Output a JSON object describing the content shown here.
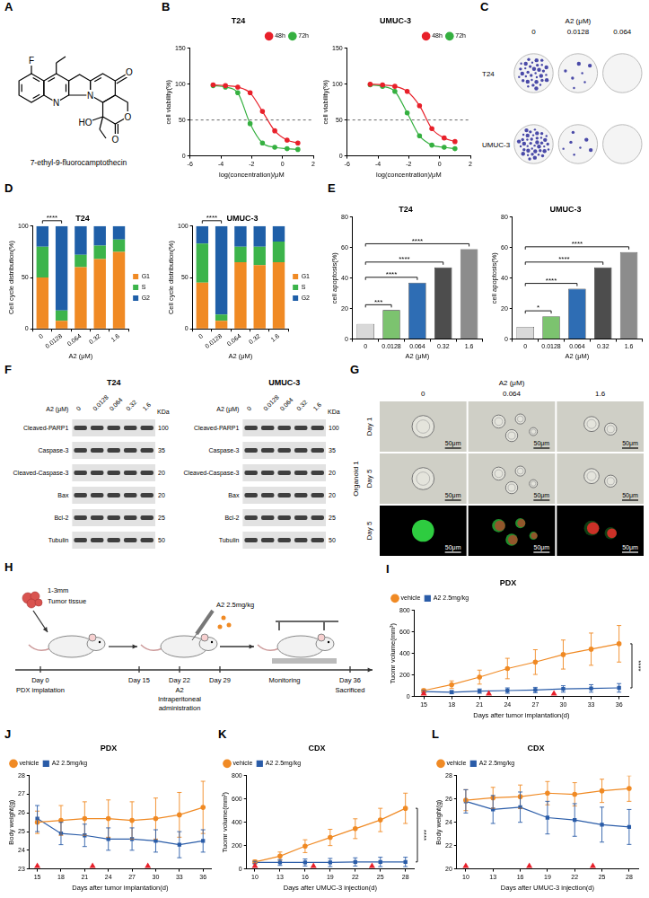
{
  "chart_data": [
    {
      "panel": "B",
      "type": "line",
      "title": "T24",
      "x_label": "log(concentration)/μM",
      "y_label": "cell viability(%)",
      "x": [
        -4.5,
        -3.7,
        -2.9,
        -2.1,
        -1.3,
        -0.5,
        0.3,
        1.0
      ],
      "xlim": [
        -6,
        2
      ],
      "xticks": [
        -6,
        -4,
        -2,
        0,
        2
      ],
      "ylim": [
        0,
        150
      ],
      "yticks": [
        0,
        50,
        100,
        150
      ],
      "grid": false,
      "legend": "top-right",
      "threshold": 50,
      "series": [
        {
          "name": "48h",
          "color": "#e8202a",
          "marker": "circle",
          "line_style": "smooth",
          "values": [
            99,
            98,
            96,
            88,
            62,
            35,
            22,
            18
          ]
        },
        {
          "name": "72h",
          "color": "#35b040",
          "marker": "circle",
          "line_style": "smooth",
          "values": [
            98,
            96,
            88,
            45,
            18,
            12,
            10,
            9
          ]
        }
      ]
    },
    {
      "panel": "B",
      "type": "line",
      "title": "UMUC-3",
      "x_label": "log(concentration)/μM",
      "y_label": "cell viability(%)",
      "x": [
        -4.5,
        -3.7,
        -2.9,
        -2.1,
        -1.3,
        -0.5,
        0.3,
        1.0
      ],
      "xlim": [
        -6,
        2
      ],
      "xticks": [
        -6,
        -4,
        -2,
        0,
        2
      ],
      "ylim": [
        0,
        150
      ],
      "yticks": [
        0,
        50,
        100,
        150
      ],
      "grid": false,
      "legend": "top-right",
      "threshold": 50,
      "series": [
        {
          "name": "48h",
          "color": "#e8202a",
          "marker": "circle",
          "line_style": "smooth",
          "values": [
            100,
            99,
            97,
            90,
            70,
            38,
            25,
            20
          ]
        },
        {
          "name": "72h",
          "color": "#35b040",
          "marker": "circle",
          "line_style": "smooth",
          "values": [
            99,
            97,
            90,
            60,
            28,
            15,
            12,
            10
          ]
        }
      ]
    },
    {
      "panel": "D",
      "type": "bar",
      "title": "T24",
      "x_label": "A2 (μM)",
      "y_label": "Cell cycle distribution(%)",
      "categories": [
        "0",
        "0.0128",
        "0.064",
        "0.32",
        "1.6"
      ],
      "stacked": true,
      "ylim": [
        0,
        100
      ],
      "yticks": [
        0,
        50,
        100
      ],
      "grid": false,
      "legend": "right",
      "series": [
        {
          "name": "G1",
          "color": "#f08a24",
          "values": [
            50,
            8,
            60,
            68,
            75
          ]
        },
        {
          "name": "S",
          "color": "#3cb44b",
          "values": [
            30,
            10,
            12,
            13,
            12
          ]
        },
        {
          "name": "G2",
          "color": "#1f5fa8",
          "values": [
            20,
            82,
            28,
            19,
            13
          ]
        }
      ],
      "annotations": [
        {
          "text": "****",
          "from": "0",
          "to": "0.0128"
        }
      ]
    },
    {
      "panel": "D",
      "type": "bar",
      "title": "UMUC-3",
      "x_label": "A2 (μM)",
      "y_label": "Cell cycle distribution(%)",
      "categories": [
        "0",
        "0.0128",
        "0.064",
        "0.32",
        "1.6"
      ],
      "stacked": true,
      "ylim": [
        0,
        100
      ],
      "yticks": [
        0,
        50,
        100
      ],
      "grid": false,
      "legend": "right",
      "series": [
        {
          "name": "G1",
          "color": "#f08a24",
          "values": [
            45,
            8,
            65,
            62,
            65
          ]
        },
        {
          "name": "S",
          "color": "#3cb44b",
          "values": [
            38,
            6,
            15,
            18,
            20
          ]
        },
        {
          "name": "G2",
          "color": "#1f5fa8",
          "values": [
            17,
            86,
            20,
            20,
            15
          ]
        }
      ],
      "annotations": [
        {
          "text": "****",
          "from": "0",
          "to": "0.0128"
        }
      ]
    },
    {
      "panel": "E",
      "type": "bar",
      "title": "T24",
      "x_label": "A2 (μM)",
      "y_label": "cell apoptosis(%)",
      "categories": [
        "0",
        "0.0128",
        "0.064",
        "0.32",
        "1.6"
      ],
      "values": [
        10,
        19,
        37,
        47,
        59
      ],
      "colors": [
        "#d9d9d9",
        "#7cc36f",
        "#2e6db4",
        "#4d4d4d",
        "#8c8c8c"
      ],
      "ylim": [
        0,
        80
      ],
      "yticks": [
        0,
        20,
        40,
        60,
        80
      ],
      "grid": false,
      "annotations": [
        {
          "text": "***",
          "from": "0",
          "to": "0.0128"
        },
        {
          "text": "****",
          "from": "0",
          "to": "0.064"
        },
        {
          "text": "****",
          "from": "0",
          "to": "0.32"
        },
        {
          "text": "****",
          "from": "0",
          "to": "1.6"
        }
      ]
    },
    {
      "panel": "E",
      "type": "bar",
      "title": "UMUC-3",
      "x_label": "A2 (μM)",
      "y_label": "cell apoptosis(%)",
      "categories": [
        "0",
        "0.0128",
        "0.064",
        "0.32",
        "1.6"
      ],
      "values": [
        8,
        15,
        33,
        47,
        57
      ],
      "colors": [
        "#d9d9d9",
        "#7cc36f",
        "#2e6db4",
        "#4d4d4d",
        "#8c8c8c"
      ],
      "ylim": [
        0,
        80
      ],
      "yticks": [
        0,
        20,
        40,
        60,
        80
      ],
      "grid": false,
      "annotations": [
        {
          "text": "*",
          "from": "0",
          "to": "0.0128"
        },
        {
          "text": "****",
          "from": "0",
          "to": "0.064"
        },
        {
          "text": "****",
          "from": "0",
          "to": "0.32"
        },
        {
          "text": "****",
          "from": "0",
          "to": "1.6"
        }
      ]
    },
    {
      "panel": "I",
      "type": "line",
      "title": "PDX",
      "x_label": "Days after tumor implantation(d)",
      "y_label": "Tuomr volume(mm³)",
      "x": [
        15,
        18,
        21,
        24,
        27,
        30,
        33,
        36
      ],
      "xlim": [
        14,
        37
      ],
      "xticks": [
        15,
        18,
        21,
        24,
        27,
        30,
        33,
        36
      ],
      "ylim": [
        0,
        800
      ],
      "yticks": [
        0,
        200,
        400,
        600,
        800
      ],
      "grid": false,
      "legend": "top-left",
      "dosing": {
        "days": [
          15,
          22,
          29
        ],
        "color": "#e8202a",
        "marker": "triangle"
      },
      "series": [
        {
          "name": "vehicle",
          "color": "#f08a24",
          "marker": "circle",
          "line_style": "solid",
          "values": [
            55,
            110,
            180,
            260,
            320,
            390,
            440,
            490
          ],
          "errors": [
            15,
            35,
            65,
            95,
            115,
            135,
            150,
            170
          ]
        },
        {
          "name": "A2 2.5mg/kg",
          "color": "#2a5ca8",
          "marker": "square",
          "line_style": "solid",
          "values": [
            45,
            40,
            50,
            55,
            60,
            70,
            75,
            80
          ],
          "errors": [
            10,
            15,
            20,
            25,
            25,
            30,
            35,
            40
          ]
        }
      ],
      "annotations": [
        {
          "text": "****",
          "at_x": 36
        }
      ]
    },
    {
      "panel": "J",
      "type": "line",
      "title": "PDX",
      "x_label": "Days after tumor implantation(d)",
      "y_label": "Body weight(g)",
      "x": [
        15,
        18,
        21,
        24,
        27,
        30,
        33,
        36
      ],
      "xlim": [
        14,
        37
      ],
      "xticks": [
        15,
        18,
        21,
        24,
        27,
        30,
        33,
        36
      ],
      "ylim": [
        23,
        28
      ],
      "yticks": [
        23,
        24,
        25,
        26,
        27,
        28
      ],
      "grid": false,
      "legend": "top-left",
      "dosing": {
        "days": [
          15,
          22,
          29
        ],
        "color": "#e8202a",
        "marker": "triangle"
      },
      "series": [
        {
          "name": "vehicle",
          "color": "#f08a24",
          "marker": "circle",
          "line_style": "solid",
          "values": [
            25.5,
            25.6,
            25.7,
            25.7,
            25.6,
            25.7,
            25.9,
            26.3
          ],
          "errors": [
            0.6,
            0.8,
            0.9,
            1.0,
            1.0,
            1.1,
            1.2,
            1.4
          ]
        },
        {
          "name": "A2 2.5mg/kg",
          "color": "#2a5ca8",
          "marker": "square",
          "line_style": "solid",
          "values": [
            25.7,
            24.9,
            24.8,
            24.6,
            24.6,
            24.5,
            24.3,
            24.5
          ],
          "errors": [
            0.7,
            0.6,
            0.6,
            0.6,
            0.6,
            0.6,
            0.7,
            0.6
          ]
        }
      ]
    },
    {
      "panel": "K",
      "type": "line",
      "title": "CDX",
      "x_label": "Days after UMUC-3 injection(d)",
      "y_label": "Tuomr volume(mm³)",
      "x": [
        10,
        13,
        16,
        19,
        22,
        25,
        28
      ],
      "xlim": [
        9,
        29
      ],
      "xticks": [
        10,
        13,
        16,
        19,
        22,
        25,
        28
      ],
      "ylim": [
        0,
        800
      ],
      "yticks": [
        0,
        200,
        400,
        600,
        800
      ],
      "grid": false,
      "legend": "top-left",
      "dosing": {
        "days": [
          10,
          17,
          24
        ],
        "color": "#e8202a",
        "marker": "triangle"
      },
      "series": [
        {
          "name": "vehicle",
          "color": "#f08a24",
          "marker": "circle",
          "line_style": "solid",
          "values": [
            60,
            110,
            195,
            270,
            345,
            420,
            520
          ],
          "errors": [
            15,
            35,
            55,
            70,
            85,
            100,
            130
          ]
        },
        {
          "name": "A2 2.5mg/kg",
          "color": "#2a5ca8",
          "marker": "square",
          "line_style": "solid",
          "values": [
            55,
            55,
            55,
            55,
            60,
            60,
            60
          ],
          "errors": [
            10,
            25,
            30,
            35,
            35,
            40,
            40
          ]
        }
      ],
      "annotations": [
        {
          "text": "****",
          "at_x": 28
        }
      ]
    },
    {
      "panel": "L",
      "type": "line",
      "title": "CDX",
      "x_label": "Days after UMUC-3 injection(d)",
      "y_label": "Body weight(g)",
      "x": [
        10,
        13,
        16,
        19,
        22,
        25,
        28
      ],
      "xlim": [
        9,
        29
      ],
      "xticks": [
        10,
        13,
        16,
        19,
        22,
        25,
        28
      ],
      "ylim": [
        20,
        28
      ],
      "yticks": [
        20,
        22,
        24,
        26,
        28
      ],
      "grid": false,
      "legend": "top-left",
      "dosing": {
        "days": [
          10,
          17,
          24
        ],
        "color": "#e8202a",
        "marker": "triangle"
      },
      "series": [
        {
          "name": "vehicle",
          "color": "#f08a24",
          "marker": "circle",
          "line_style": "solid",
          "values": [
            25.9,
            26.1,
            26.2,
            26.5,
            26.4,
            26.7,
            26.9
          ],
          "errors": [
            0.9,
            0.9,
            1.0,
            1.0,
            1.0,
            1.0,
            1.1
          ]
        },
        {
          "name": "A2 2.5mg/kg",
          "color": "#2a5ca8",
          "marker": "square",
          "line_style": "solid",
          "values": [
            25.8,
            25.1,
            25.3,
            24.4,
            24.2,
            23.8,
            23.6
          ],
          "errors": [
            1.0,
            1.2,
            1.3,
            1.4,
            1.4,
            1.5,
            1.5
          ]
        }
      ]
    }
  ],
  "figures": [
    {
      "panel": "A",
      "type": "structure",
      "atoms": [
        "F",
        "N",
        "N",
        "O",
        "O",
        "O",
        "HO"
      ],
      "name": "7-ethyl-9-fluorocamptothecin"
    },
    {
      "panel": "C",
      "type": "colony_images",
      "header": "A2 (μM)",
      "columns": [
        "0",
        "0.0128",
        "0.064"
      ],
      "rows": [
        "T24",
        "UMUC-3"
      ]
    },
    {
      "panel": "F",
      "type": "western_blot",
      "header": "A2 (μM)",
      "columns": [
        "0",
        "0.0128",
        "0.064",
        "0.32",
        "1.6"
      ],
      "unit": "KDa",
      "groups": [
        "T24",
        "UMUC-3"
      ],
      "rows": [
        {
          "name": "Cleaved-PARP1",
          "kda": 100
        },
        {
          "name": "Caspase-3",
          "kda": 35
        },
        {
          "name": "Cleaved-Caspase-3",
          "kda": 20
        },
        {
          "name": "Bax",
          "kda": 20
        },
        {
          "name": "Bcl-2",
          "kda": 25
        },
        {
          "name": "Tubulin",
          "kda": 50
        }
      ]
    },
    {
      "panel": "G",
      "type": "organoid_images",
      "header": "A2 (μM)",
      "columns": [
        "0",
        "0.064",
        "1.6"
      ],
      "group": "Organoid 1",
      "rows": [
        "Day 1",
        "Day 5",
        "Day 5"
      ],
      "scale_bar": "50μm"
    },
    {
      "panel": "H",
      "type": "schematic",
      "tissue": [
        "1-3mm",
        "Tumor tissue"
      ],
      "drug": "A2 2.5mg/kg",
      "monitoring": "Monitoring",
      "timeline": [
        {
          "day": "Day 0",
          "caption": [
            "PDX implatation"
          ]
        },
        {
          "day": "Day 15"
        },
        {
          "day": "Day 22",
          "caption": [
            "A2",
            "Intraperitoneal",
            "administration"
          ]
        },
        {
          "day": "Day 29"
        },
        {
          "day": "Day 36",
          "caption": [
            "Sacrificed"
          ]
        }
      ]
    }
  ]
}
